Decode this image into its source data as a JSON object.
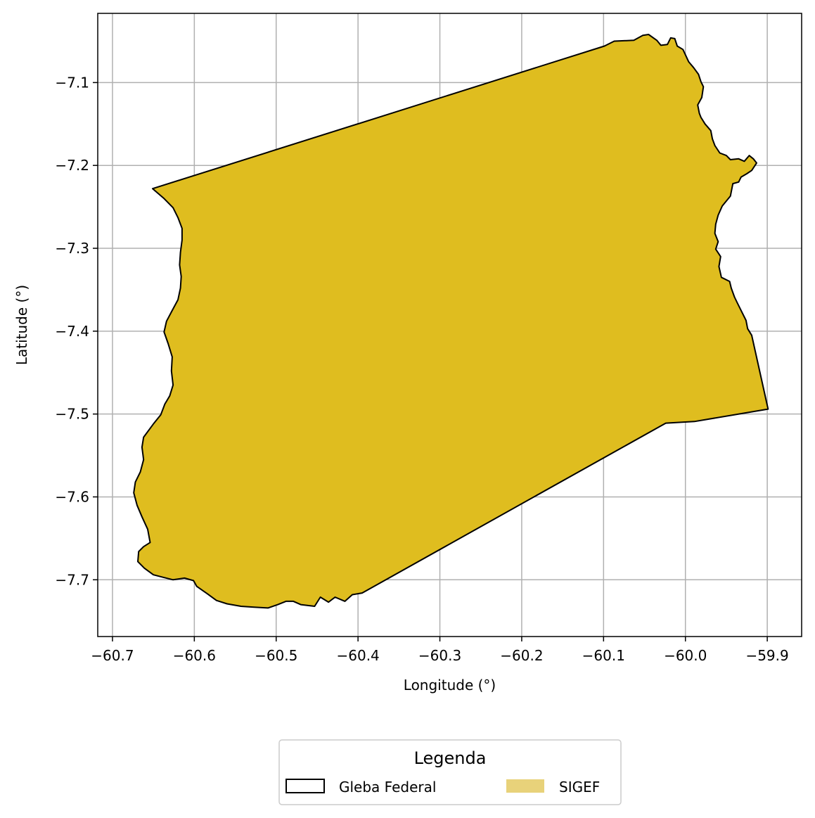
{
  "chart_data": {
    "type": "map",
    "xlabel": "Longitude (°)",
    "ylabel": "Latitude (°)",
    "xlim": [
      -60.718,
      -59.858
    ],
    "ylim": [
      -7.7685,
      -7.0165
    ],
    "xticks": [
      -60.7,
      -60.6,
      -60.5,
      -60.4,
      -60.3,
      -60.2,
      -60.1,
      -60.0,
      -59.9
    ],
    "xtick_labels": [
      "−60.7",
      "−60.6",
      "−60.5",
      "−60.4",
      "−60.3",
      "−60.2",
      "−60.1",
      "−60.0",
      "−59.9"
    ],
    "yticks": [
      -7.1,
      -7.2,
      -7.3,
      -7.4,
      -7.5,
      -7.6,
      -7.7
    ],
    "ytick_labels": [
      "−7.1",
      "−7.2",
      "−7.3",
      "−7.4",
      "−7.5",
      "−7.6",
      "−7.7"
    ],
    "grid": true,
    "layers": [
      {
        "name": "Gleba Federal",
        "fill": "none",
        "stroke": "#000000"
      },
      {
        "name": "SIGEF",
        "fill": "#dfbd1f",
        "legend_fill": "#e8d27a",
        "stroke": "#000000"
      }
    ],
    "polygon": [
      [
        -60.651,
        -7.228
      ],
      [
        -60.099,
        -7.056
      ],
      [
        -60.087,
        -7.05
      ],
      [
        -60.063,
        -7.049
      ],
      [
        -60.052,
        -7.043
      ],
      [
        -60.045,
        -7.042
      ],
      [
        -60.035,
        -7.049
      ],
      [
        -60.03,
        -7.055
      ],
      [
        -60.022,
        -7.054
      ],
      [
        -60.018,
        -7.046
      ],
      [
        -60.013,
        -7.047
      ],
      [
        -60.01,
        -7.056
      ],
      [
        -60.003,
        -7.06
      ],
      [
        -59.996,
        -7.075
      ],
      [
        -59.99,
        -7.082
      ],
      [
        -59.984,
        -7.09
      ],
      [
        -59.981,
        -7.099
      ],
      [
        -59.978,
        -7.105
      ],
      [
        -59.98,
        -7.118
      ],
      [
        -59.985,
        -7.127
      ],
      [
        -59.983,
        -7.137
      ],
      [
        -59.981,
        -7.142
      ],
      [
        -59.976,
        -7.15
      ],
      [
        -59.969,
        -7.158
      ],
      [
        -59.967,
        -7.168
      ],
      [
        -59.964,
        -7.176
      ],
      [
        -59.958,
        -7.185
      ],
      [
        -59.95,
        -7.188
      ],
      [
        -59.945,
        -7.193
      ],
      [
        -59.935,
        -7.192
      ],
      [
        -59.928,
        -7.195
      ],
      [
        -59.922,
        -7.188
      ],
      [
        -59.917,
        -7.192
      ],
      [
        -59.913,
        -7.197
      ],
      [
        -59.919,
        -7.206
      ],
      [
        -59.925,
        -7.21
      ],
      [
        -59.932,
        -7.214
      ],
      [
        -59.935,
        -7.22
      ],
      [
        -59.942,
        -7.222
      ],
      [
        -59.945,
        -7.237
      ],
      [
        -59.955,
        -7.249
      ],
      [
        -59.96,
        -7.26
      ],
      [
        -59.963,
        -7.271
      ],
      [
        -59.964,
        -7.282
      ],
      [
        -59.96,
        -7.292
      ],
      [
        -59.963,
        -7.301
      ],
      [
        -59.957,
        -7.31
      ],
      [
        -59.959,
        -7.322
      ],
      [
        -59.956,
        -7.335
      ],
      [
        -59.946,
        -7.34
      ],
      [
        -59.944,
        -7.348
      ],
      [
        -59.94,
        -7.359
      ],
      [
        -59.936,
        -7.367
      ],
      [
        -59.932,
        -7.375
      ],
      [
        -59.926,
        -7.387
      ],
      [
        -59.924,
        -7.397
      ],
      [
        -59.919,
        -7.405
      ],
      [
        -59.899,
        -7.494
      ],
      [
        -59.989,
        -7.509
      ],
      [
        -60.024,
        -7.511
      ],
      [
        -60.395,
        -7.716
      ],
      [
        -60.407,
        -7.718
      ],
      [
        -60.416,
        -7.726
      ],
      [
        -60.428,
        -7.721
      ],
      [
        -60.436,
        -7.727
      ],
      [
        -60.446,
        -7.721
      ],
      [
        -60.453,
        -7.732
      ],
      [
        -60.462,
        -7.731
      ],
      [
        -60.47,
        -7.73
      ],
      [
        -60.479,
        -7.726
      ],
      [
        -60.488,
        -7.726
      ],
      [
        -60.498,
        -7.73
      ],
      [
        -60.51,
        -7.734
      ],
      [
        -60.527,
        -7.733
      ],
      [
        -60.543,
        -7.732
      ],
      [
        -60.56,
        -7.729
      ],
      [
        -60.573,
        -7.725
      ],
      [
        -60.584,
        -7.717
      ],
      [
        -60.597,
        -7.708
      ],
      [
        -60.601,
        -7.701
      ],
      [
        -60.612,
        -7.698
      ],
      [
        -60.626,
        -7.7
      ],
      [
        -60.638,
        -7.697
      ],
      [
        -60.65,
        -7.694
      ],
      [
        -60.661,
        -7.686
      ],
      [
        -60.669,
        -7.678
      ],
      [
        -60.668,
        -7.666
      ],
      [
        -60.662,
        -7.66
      ],
      [
        -60.654,
        -7.655
      ],
      [
        -60.657,
        -7.639
      ],
      [
        -60.664,
        -7.624
      ],
      [
        -60.67,
        -7.61
      ],
      [
        -60.674,
        -7.595
      ],
      [
        -60.672,
        -7.582
      ],
      [
        -60.666,
        -7.57
      ],
      [
        -60.662,
        -7.555
      ],
      [
        -60.664,
        -7.54
      ],
      [
        -60.662,
        -7.528
      ],
      [
        -60.65,
        -7.512
      ],
      [
        -60.641,
        -7.501
      ],
      [
        -60.636,
        -7.488
      ],
      [
        -60.63,
        -7.478
      ],
      [
        -60.626,
        -7.465
      ],
      [
        -60.628,
        -7.448
      ],
      [
        -60.627,
        -7.431
      ],
      [
        -60.632,
        -7.415
      ],
      [
        -60.637,
        -7.401
      ],
      [
        -60.634,
        -7.388
      ],
      [
        -60.627,
        -7.375
      ],
      [
        -60.62,
        -7.362
      ],
      [
        -60.617,
        -7.348
      ],
      [
        -60.616,
        -7.334
      ],
      [
        -60.618,
        -7.32
      ],
      [
        -60.617,
        -7.305
      ],
      [
        -60.615,
        -7.29
      ],
      [
        -60.615,
        -7.276
      ],
      [
        -60.62,
        -7.263
      ],
      [
        -60.626,
        -7.251
      ],
      [
        -60.637,
        -7.24
      ],
      [
        -60.651,
        -7.228
      ]
    ]
  },
  "legend": {
    "title": "Legenda",
    "items": [
      {
        "label": "Gleba Federal"
      },
      {
        "label": "SIGEF"
      }
    ]
  }
}
